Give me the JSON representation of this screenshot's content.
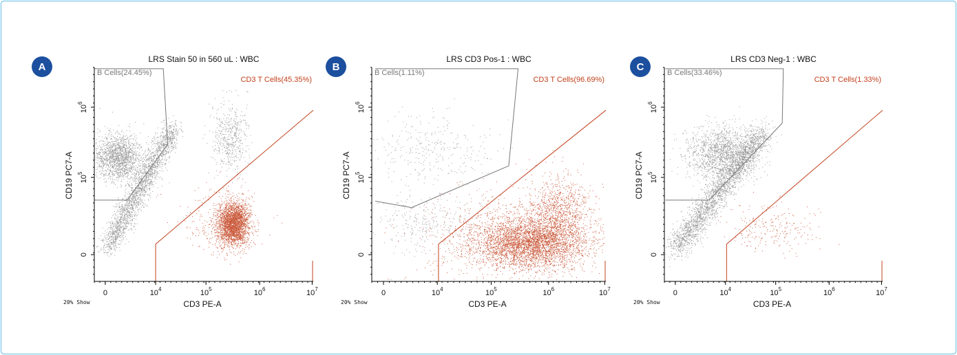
{
  "panels": [
    {
      "letter": "A",
      "title": "LRS Stain 50 in 560 uL : WBC",
      "gates": {
        "b_cells": "B Cells(24.45%)",
        "cd3_t_cells": "CD3 T Cells(45.35%)"
      },
      "x_label": "CD3 PE-A",
      "y_label": "CD19 PC7-A",
      "show": "20% Show",
      "x_ticks": [
        "0",
        {
          "base": "10",
          "exp": "4"
        },
        {
          "base": "10",
          "exp": "5"
        },
        {
          "base": "10",
          "exp": "6"
        },
        {
          "base": "10",
          "exp": "7"
        }
      ],
      "y_ticks": [
        "0",
        {
          "base": "10",
          "exp": "5"
        },
        {
          "base": "10",
          "exp": "6"
        }
      ]
    },
    {
      "letter": "B",
      "title": "LRS CD3 Pos-1 : WBC",
      "gates": {
        "b_cells": "B Cells(1.11%)",
        "cd3_t_cells": "CD3 T Cells(96.69%)"
      },
      "x_label": "CD3 PE-A",
      "y_label": "CD19 PC7-A",
      "show": "20% Show",
      "x_ticks": [
        "0",
        {
          "base": "10",
          "exp": "4"
        },
        {
          "base": "10",
          "exp": "5"
        },
        {
          "base": "10",
          "exp": "6"
        },
        {
          "base": "10",
          "exp": "7"
        }
      ],
      "y_ticks": [
        "0",
        {
          "base": "10",
          "exp": "5"
        },
        {
          "base": "10",
          "exp": "6"
        }
      ]
    },
    {
      "letter": "C",
      "title": "LRS CD3 Neg-1 : WBC",
      "gates": {
        "b_cells": "B Cells(33.46%)",
        "cd3_t_cells": "CD3 T Cells(1.33%)"
      },
      "x_label": "CD3 PE-A",
      "y_label": "CD19 PC7-A",
      "show": "20% Show",
      "x_ticks": [
        "0",
        {
          "base": "10",
          "exp": "4"
        },
        {
          "base": "10",
          "exp": "5"
        },
        {
          "base": "10",
          "exp": "6"
        },
        {
          "base": "10",
          "exp": "7"
        }
      ],
      "y_ticks": [
        "0",
        {
          "base": "10",
          "exp": "5"
        },
        {
          "base": "10",
          "exp": "6"
        }
      ]
    }
  ]
}
